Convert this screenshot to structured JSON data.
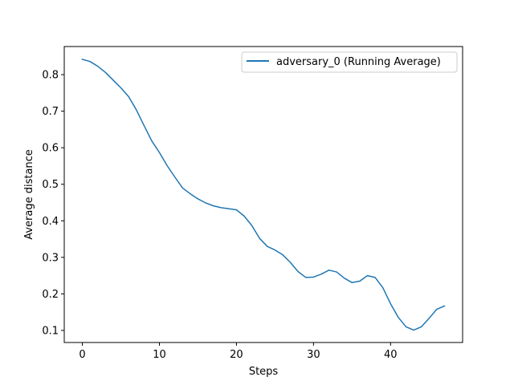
{
  "chart_data": {
    "type": "line",
    "xlabel": "Steps",
    "ylabel": "Average distance",
    "xlim": [
      -2.35,
      49.35
    ],
    "ylim": [
      0.067,
      0.877
    ],
    "xticks": [
      0,
      10,
      20,
      30,
      40
    ],
    "yticks": [
      0.1,
      0.2,
      0.3,
      0.4,
      0.5,
      0.6,
      0.7,
      0.8
    ],
    "grid": false,
    "legend_position": "top-right",
    "series": [
      {
        "name": "adversary_0 (Running Average)",
        "color": "#1f77b4",
        "x": [
          0,
          1,
          2,
          3,
          4,
          5,
          6,
          7,
          8,
          9,
          10,
          11,
          12,
          13,
          14,
          15,
          16,
          17,
          18,
          19,
          20,
          21,
          22,
          23,
          24,
          25,
          26,
          27,
          28,
          29,
          30,
          31,
          32,
          33,
          34,
          35,
          36,
          37,
          38,
          39,
          40,
          41,
          42,
          43,
          44,
          45,
          46,
          47
        ],
        "y": [
          0.842,
          0.836,
          0.823,
          0.806,
          0.785,
          0.764,
          0.74,
          0.704,
          0.661,
          0.619,
          0.587,
          0.551,
          0.52,
          0.49,
          0.474,
          0.46,
          0.449,
          0.441,
          0.436,
          0.433,
          0.43,
          0.413,
          0.387,
          0.352,
          0.33,
          0.32,
          0.307,
          0.286,
          0.261,
          0.245,
          0.246,
          0.254,
          0.265,
          0.26,
          0.243,
          0.231,
          0.235,
          0.25,
          0.245,
          0.217,
          0.173,
          0.136,
          0.11,
          0.101,
          0.11,
          0.133,
          0.158,
          0.167
        ]
      }
    ]
  }
}
